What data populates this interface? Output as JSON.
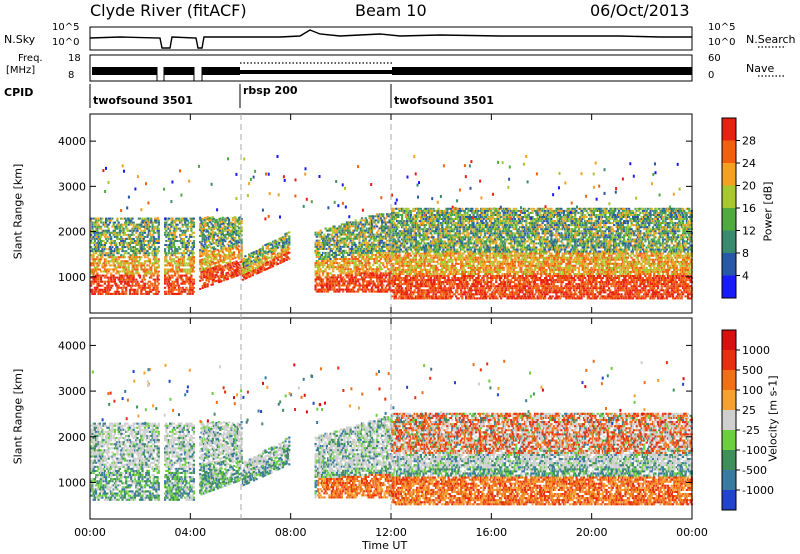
{
  "header": {
    "station": "Clyde River (fitACF)",
    "beam": "Beam 10",
    "date": "06/Oct/2013"
  },
  "noise_panel": {
    "left_label": "N.Sky",
    "right_label": "N.Search",
    "left_ticks": [
      "10^5",
      "10^0"
    ],
    "right_ticks": [
      "10^5",
      "10^0"
    ]
  },
  "freq_panel": {
    "left_label_1": "Freq.",
    "left_label_2": "[MHz]",
    "right_label": "Nave",
    "left_ticks": [
      "18",
      "8"
    ],
    "right_ticks": [
      "60",
      "0"
    ]
  },
  "cpid": {
    "label": "CPID",
    "segments": [
      {
        "name": "twofsound 3501",
        "start_hour": 0,
        "end_hour": 6
      },
      {
        "name": "rbsp 200",
        "start_hour": 6,
        "end_hour": 12
      },
      {
        "name": "twofsound 3501",
        "start_hour": 12,
        "end_hour": 24
      }
    ]
  },
  "chart_data": [
    {
      "type": "heatmap",
      "title": "",
      "xlabel": "Time UT",
      "ylabel": "Slant Range [km]",
      "xlim": [
        0,
        24
      ],
      "ylim": [
        200,
        4600
      ],
      "yticks": [
        "1000",
        "2000",
        "3000",
        "4000"
      ],
      "colorbar": {
        "label": "Power [dB]",
        "ticks": [
          "4",
          "8",
          "12",
          "16",
          "20",
          "24",
          "28"
        ],
        "colors": [
          "#1a1aff",
          "#2a58a8",
          "#3a8a70",
          "#50aa40",
          "#a8c830",
          "#f4a020",
          "#f06010",
          "#e82010"
        ]
      },
      "data_gaps_hours": [
        [
          2.7,
          2.9
        ],
        [
          4.1,
          4.3
        ]
      ],
      "regions": [
        {
          "x": [
            0.5,
            1.0
          ],
          "range_km": [
            600,
            2200
          ],
          "value": "12-28"
        },
        {
          "x": [
            4.3,
            7.8
          ],
          "range_km": [
            600,
            2300
          ],
          "value": "8-28"
        },
        {
          "x": [
            9.0,
            24.0
          ],
          "range_km": [
            600,
            2500
          ],
          "value": "4-28"
        }
      ]
    },
    {
      "type": "heatmap",
      "title": "",
      "xlabel": "Time UT",
      "ylabel": "Slant Range [km]",
      "xlim": [
        0,
        24
      ],
      "ylim": [
        200,
        4600
      ],
      "yticks": [
        "1000",
        "2000",
        "3000",
        "4000"
      ],
      "xticks": [
        "00:00",
        "04:00",
        "08:00",
        "12:00",
        "16:00",
        "20:00",
        "00:00"
      ],
      "colorbar": {
        "label": "Velocity [m s-1]",
        "ticks": [
          "1000",
          "500",
          "100",
          "25",
          "-25",
          "-100",
          "-500",
          "-1000"
        ],
        "colors": [
          "#2244cc",
          "#3a7aa0",
          "#3f8f5a",
          "#6ccf40",
          "#cfcfcf",
          "#f5a030",
          "#f07018",
          "#e83010",
          "#d81010"
        ]
      },
      "data_gaps_hours": [
        [
          2.7,
          2.9
        ],
        [
          4.1,
          4.3
        ]
      ]
    }
  ],
  "axis": {
    "xlabel": "Time UT"
  }
}
